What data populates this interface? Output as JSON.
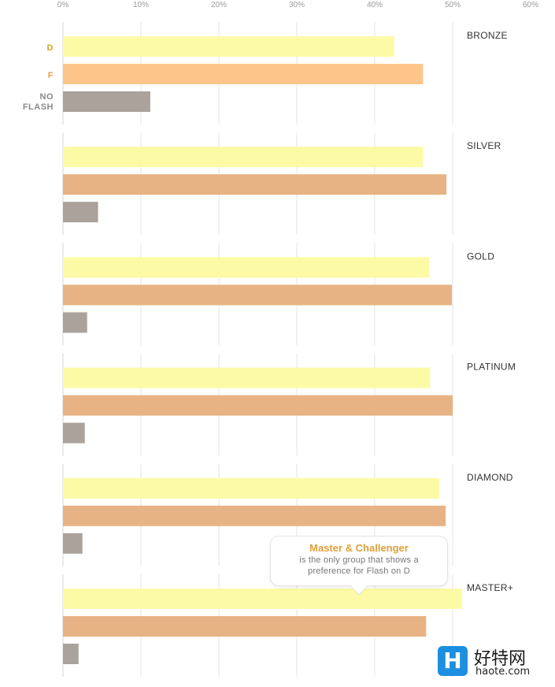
{
  "chart_data": {
    "type": "bar",
    "orientation": "horizontal",
    "x_ticks": [
      "0%",
      "10%",
      "20%",
      "30%",
      "40%",
      "50%",
      "60%"
    ],
    "xlim": [
      0,
      60
    ],
    "legend": [
      {
        "name": "D",
        "color": "#d9a520"
      },
      {
        "name": "F",
        "color": "#e8a04a"
      },
      {
        "name": "NO FLASH",
        "color": "#8a8a8a"
      }
    ],
    "series_colors": {
      "D": "#fdfaa6",
      "F_first_group": "#fec58b",
      "F": "#e8b384",
      "NO FLASH": "#aaa29b"
    },
    "groups": [
      {
        "name": "BRONZE",
        "values": {
          "D": 42.5,
          "F": 46.2,
          "NO FLASH": 11.2
        }
      },
      {
        "name": "SILVER",
        "values": {
          "D": 46.2,
          "F": 49.2,
          "NO FLASH": 4.5
        }
      },
      {
        "name": "GOLD",
        "values": {
          "D": 47.0,
          "F": 49.9,
          "NO FLASH": 3.1
        }
      },
      {
        "name": "PLATINUM",
        "values": {
          "D": 47.1,
          "F": 50.0,
          "NO FLASH": 2.8
        }
      },
      {
        "name": "DIAMOND",
        "values": {
          "D": 48.3,
          "F": 49.1,
          "NO FLASH": 2.5
        }
      },
      {
        "name": "MASTER+",
        "values": {
          "D": 51.2,
          "F": 46.6,
          "NO FLASH": 2.0
        }
      }
    ],
    "grid": true
  },
  "callout": {
    "title": "Master & Challenger",
    "line1": "is the only group that shows a",
    "line2": "preference for Flash on D"
  },
  "watermark": {
    "logo": "H",
    "title": "好特网",
    "url": "haote.com"
  }
}
